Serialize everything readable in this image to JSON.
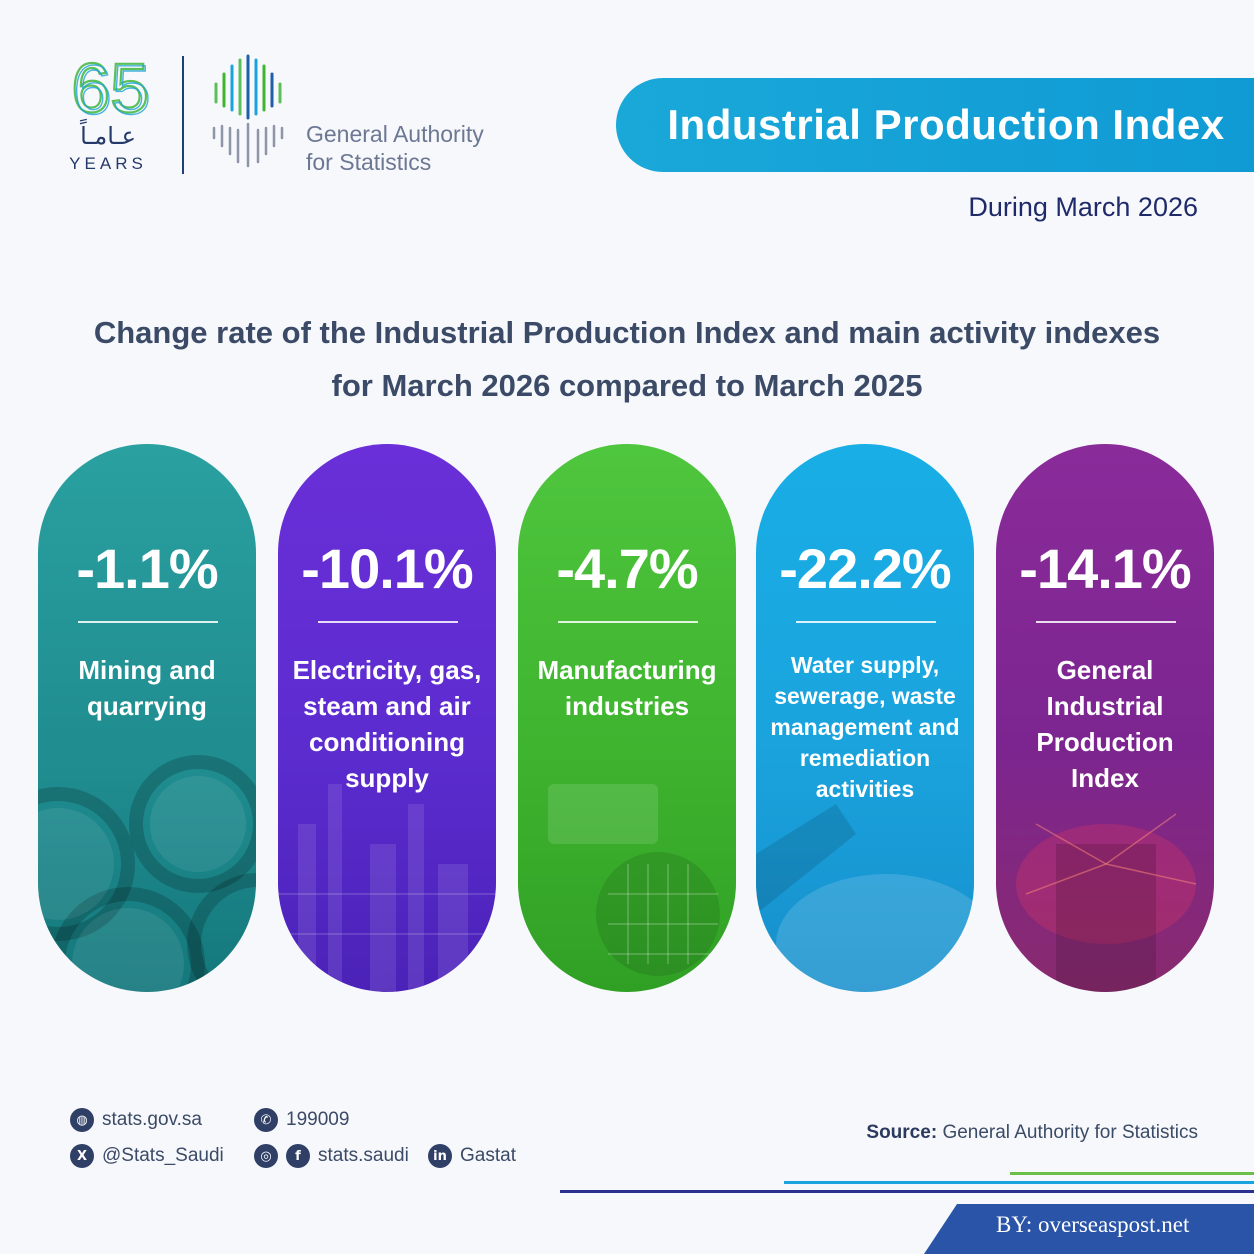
{
  "header": {
    "logo_arabic": "عـامـاً",
    "logo_years": "YEARS",
    "logo_number": "65",
    "authority_line1": "General Authority",
    "authority_line2": "for Statistics",
    "title": "Industrial Production Index",
    "during": "During March 2026"
  },
  "subtitle": {
    "line1": "Change rate of the Industrial Production Index and main activity indexes",
    "line2": "for March 2026 compared to March 2025"
  },
  "cards": [
    {
      "value": "-1.1%",
      "label": "Mining and quarrying",
      "color": "#1f8c8f"
    },
    {
      "value": "-10.1%",
      "label": "Electricity, gas, steam and air conditioning supply",
      "color": "#5c2ccf"
    },
    {
      "value": "-4.7%",
      "label": "Manufacturing industries",
      "color": "#3fb42f"
    },
    {
      "value": "-22.2%",
      "label": "Water supply, sewerage, waste management and remediation activities",
      "color": "#1aa3dd"
    },
    {
      "value": "-14.1%",
      "label": "General Industrial Production Index",
      "color": "#7c2590"
    }
  ],
  "footer": {
    "website": "stats.gov.sa",
    "twitter": "@Stats_Saudi",
    "phone": "199009",
    "social": "stats.saudi",
    "linkedin": "Gastat",
    "source_label": "Source:",
    "source_value": "General Authority for Statistics",
    "byline": "BY: overseaspost.net"
  },
  "icons": {
    "website": "globe-icon",
    "twitter": "x-icon",
    "phone": "phone-icon",
    "instagram": "instagram-icon",
    "facebook": "facebook-icon",
    "linkedin": "linkedin-icon"
  }
}
